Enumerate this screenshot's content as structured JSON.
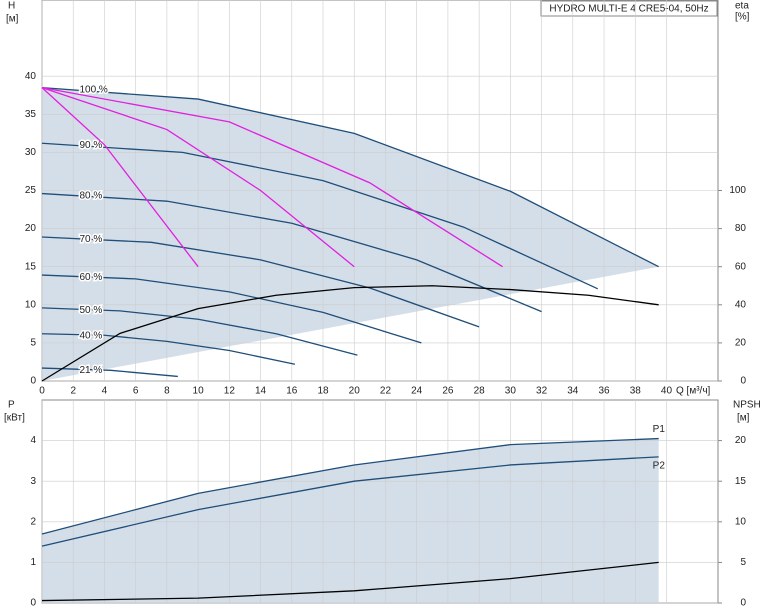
{
  "chart_data": [
    {
      "type": "line",
      "title": "HYDRO MULTI-E 4 CRE5-04, 50Hz",
      "y_label": "H",
      "y_unit": "[м]",
      "y2_label": "eta",
      "y2_unit": "[%]",
      "x_label": "Q [м³/ч]",
      "xlim": [
        0,
        43.3
      ],
      "ylim": [
        0,
        50
      ],
      "y2lim": [
        0,
        200
      ],
      "xticks": [
        0,
        2,
        4,
        6,
        8,
        10,
        12,
        14,
        16,
        18,
        20,
        22,
        24,
        26,
        28,
        30,
        32,
        34,
        36,
        38,
        40
      ],
      "yticks": [
        0,
        5,
        10,
        15,
        20,
        25,
        30,
        35,
        40
      ],
      "y2ticks": [
        0,
        20,
        40,
        60,
        80,
        100
      ],
      "grid": true,
      "series": [
        {
          "name": "100 %",
          "color": "#1f4e79",
          "x": [
            0,
            10,
            20,
            30,
            39.5
          ],
          "values": [
            38.5,
            37.0,
            32.5,
            24.9,
            15.0
          ]
        },
        {
          "name": "90 %",
          "color": "#1f4e79",
          "x": [
            0,
            9,
            18,
            27,
            35.6
          ],
          "values": [
            31.2,
            30.0,
            26.3,
            20.2,
            12.1
          ]
        },
        {
          "name": "80 %",
          "color": "#1f4e79",
          "x": [
            0,
            8,
            16,
            24,
            32
          ],
          "values": [
            24.6,
            23.6,
            20.7,
            15.9,
            9.1
          ]
        },
        {
          "name": "70 %",
          "color": "#1f4e79",
          "x": [
            0,
            7,
            14,
            21,
            28
          ],
          "values": [
            18.9,
            18.2,
            15.9,
            12.2,
            7.1
          ]
        },
        {
          "name": "60 %",
          "color": "#1f4e79",
          "x": [
            0,
            6,
            12,
            18,
            24.3
          ],
          "values": [
            13.9,
            13.4,
            11.7,
            9.0,
            5.0
          ]
        },
        {
          "name": "50 %",
          "color": "#1f4e79",
          "x": [
            0,
            5,
            10,
            15,
            20.2
          ],
          "values": [
            9.6,
            9.2,
            8.1,
            6.2,
            3.4
          ]
        },
        {
          "name": "40 %",
          "color": "#1f4e79",
          "x": [
            0,
            4,
            8,
            12,
            16.2
          ],
          "values": [
            6.2,
            6.0,
            5.2,
            4.0,
            2.2
          ]
        },
        {
          "name": "21 %",
          "color": "#1f4e79",
          "x": [
            0,
            4.4,
            8.7
          ],
          "values": [
            1.7,
            1.4,
            0.6
          ]
        },
        {
          "color": "#000000",
          "axis": "y2",
          "x": [
            0,
            5,
            10,
            15,
            20,
            25,
            30,
            35,
            39.5
          ],
          "values": [
            0,
            25,
            38,
            45,
            49,
            50,
            48,
            45,
            40
          ]
        },
        {
          "color": "#e020e0",
          "x": [
            0,
            4,
            7,
            10
          ],
          "values": [
            38.5,
            31,
            23,
            15
          ]
        },
        {
          "color": "#e020e0",
          "x": [
            0,
            8,
            14,
            20
          ],
          "values": [
            38.5,
            33,
            25,
            15
          ]
        },
        {
          "color": "#e020e0",
          "x": [
            0,
            12,
            21,
            29.5
          ],
          "values": [
            38.5,
            34,
            26,
            15
          ]
        }
      ]
    },
    {
      "type": "line",
      "y_label": "P",
      "y_unit": "[кВт]",
      "y2_label": "NPSH",
      "y2_unit": "[м]",
      "xlim": [
        0,
        43.3
      ],
      "ylim": [
        0,
        5
      ],
      "y2lim": [
        0,
        25
      ],
      "xticks": [
        0,
        2,
        4,
        6,
        8,
        10,
        12,
        14,
        16,
        18,
        20,
        22,
        24,
        26,
        28,
        30,
        32,
        34,
        36,
        38,
        40
      ],
      "yticks": [
        0,
        1,
        2,
        3,
        4
      ],
      "y2ticks": [
        0,
        5,
        10,
        15,
        20
      ],
      "grid": true,
      "series": [
        {
          "name": "P1",
          "color": "#1f4e79",
          "x": [
            0,
            10,
            20,
            30,
            39.5
          ],
          "values": [
            1.7,
            2.7,
            3.4,
            3.9,
            4.05
          ]
        },
        {
          "name": "P2",
          "color": "#1f4e79",
          "x": [
            0,
            10,
            20,
            30,
            39.5
          ],
          "values": [
            1.4,
            2.3,
            3.0,
            3.4,
            3.6
          ]
        },
        {
          "color": "#000000",
          "axis": "y2",
          "x": [
            0,
            10,
            20,
            30,
            39.5
          ],
          "values": [
            0.3,
            0.6,
            1.5,
            3.0,
            5.0
          ]
        }
      ]
    }
  ]
}
